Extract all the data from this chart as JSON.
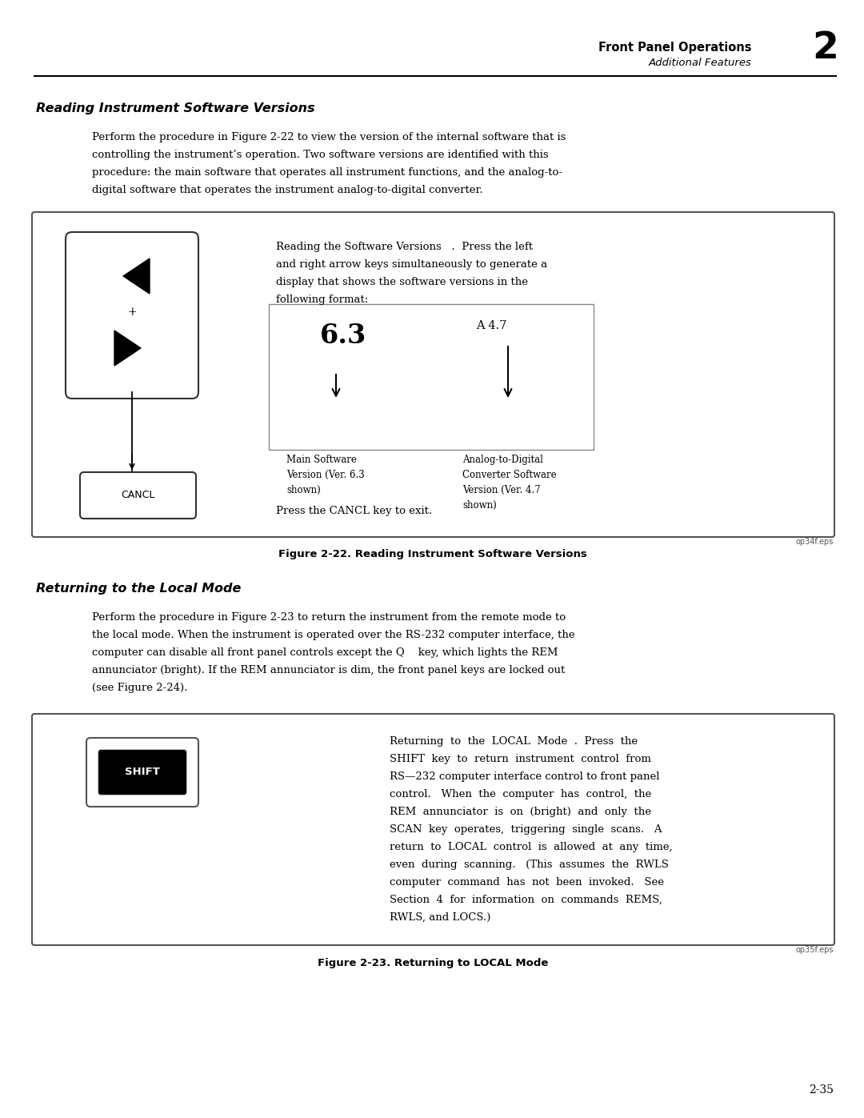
{
  "page_width": 10.8,
  "page_height": 13.97,
  "bg_color": "#ffffff",
  "header_title": "Front Panel Operations",
  "header_subtitle": "Additional Features",
  "header_chapter": "2",
  "section1_title": "Reading Instrument Software Versions",
  "section2_title": "Returning to the Local Mode",
  "fig1_caption": "Figure 2-22. Reading Instrument Software Versions",
  "fig1_eps": "op34f.eps",
  "fig2_caption": "Figure 2-23. Returning to LOCAL Mode",
  "fig2_eps": "op35f.eps",
  "page_number": "2-35"
}
